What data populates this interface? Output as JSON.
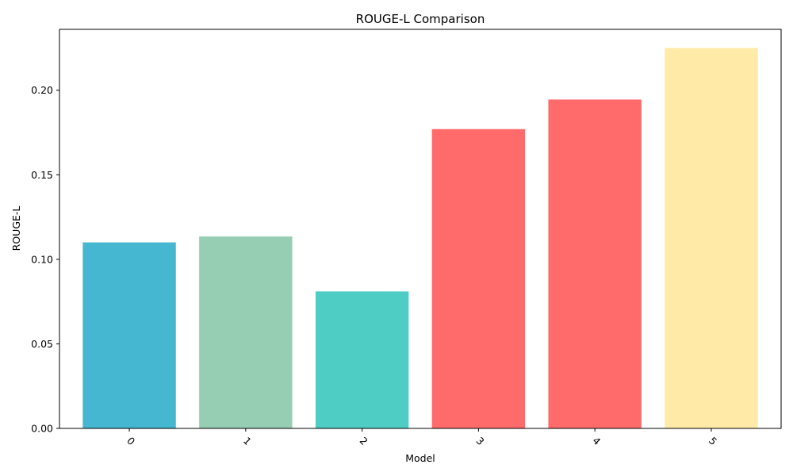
{
  "chart_data": {
    "type": "bar",
    "title": "ROUGE-L Comparison",
    "xlabel": "Model",
    "ylabel": "ROUGE-L",
    "categories": [
      "0",
      "1",
      "2",
      "3",
      "4",
      "5"
    ],
    "values": [
      0.11,
      0.1135,
      0.081,
      0.177,
      0.1945,
      0.225
    ],
    "colors": [
      "#45B7D1",
      "#96CEB4",
      "#4ECDC4",
      "#FF6B6B",
      "#FF6B6B",
      "#FFEAA7"
    ],
    "ylim": [
      0,
      0.236
    ],
    "yticks": [
      0.0,
      0.05,
      0.1,
      0.15,
      0.2
    ],
    "ytick_labels": [
      "0.00",
      "0.05",
      "0.10",
      "0.15",
      "0.20"
    ],
    "grid": false,
    "legend": "none",
    "xtick_rotation_deg": 45
  }
}
